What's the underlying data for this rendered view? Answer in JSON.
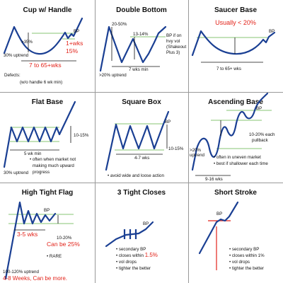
{
  "panels": {
    "cup_handle": {
      "title": "Cup w/ Handle",
      "depth": ">35%",
      "bp": "BP",
      "handle_wks": "1+wks",
      "handle_pct": "15%",
      "uptrend": "30% uptrend",
      "duration": "7 to 65+wks",
      "defects": "Defects:",
      "defect_note": "(w/o handle 6 wk min)"
    },
    "double_bottom": {
      "title": "Double Bottom",
      "depth": "20-50%",
      "range": "13-14%",
      "bp": "BP if on",
      "bp2": "hvy vol",
      "bp3": "(Shakeout",
      "bp4": "Plus 3)",
      "duration": "7 wks min",
      "uptrend": ">20% uptrend"
    },
    "saucer_base": {
      "title": "Saucer Base",
      "usually": "Usually < 20%",
      "bp": "BP",
      "duration": "7 to 65+ wks"
    },
    "flat_base": {
      "title": "Flat Base",
      "range": "10-15%",
      "duration": "5 wk min",
      "uptrend": "30% uptrend",
      "note1": "• often when market not",
      "note2": "making much upward",
      "note3": "progress"
    },
    "square_box": {
      "title": "Square Box",
      "bp": "BP",
      "range": "10-15%",
      "duration": "4-7 wks",
      "note": "• avoid wide and loose action"
    },
    "ascending_base": {
      "title": "Ascending Base",
      "bp": "BP",
      "uptrend1": ">20%",
      "uptrend2": "uptrend",
      "pullback1": "10-20% each",
      "pullback2": "pullback",
      "note1": "• often in uneven market",
      "note2": "• best if shallower each time",
      "duration": "9-16 wks"
    },
    "high_tight_flag": {
      "title": "High Tight Flag",
      "bp": "BP",
      "wks": "3-5 wks",
      "range": "10-20%",
      "can_be": "Can be 25%",
      "rare": "• RARE",
      "uptrend": "100-120% uptrend",
      "weeks": "4-8 Weeks, Can be more."
    },
    "three_tight": {
      "title": "3 Tight Closes",
      "bp": "BP",
      "note1": "• secondary BP",
      "note2a": "• closes within ",
      "note2b": "1.5%",
      "note3": "• vol drops",
      "note4": "• tighter the better"
    },
    "short_stroke": {
      "title": "Short Stroke",
      "bp": "BP",
      "note1": "• secondary BP",
      "note2": "• closes within 1%",
      "note3": "• vol drops",
      "note4": "• tighter the better"
    }
  },
  "colors": {
    "price_line": "#1a3f93",
    "guide_line": "#9fd08f",
    "accent_red": "#e2231a",
    "panel_border": "#999999"
  }
}
